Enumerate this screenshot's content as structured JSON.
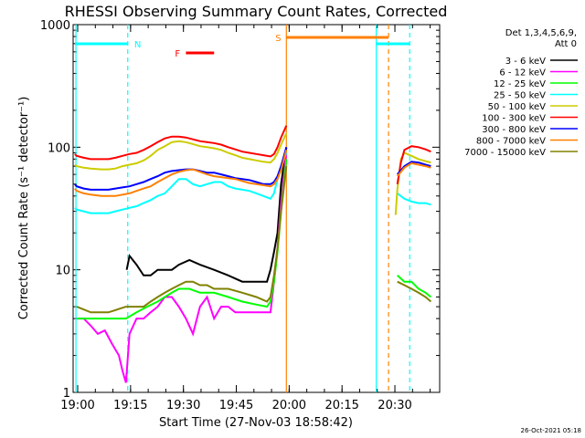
{
  "chart_data": {
    "type": "line",
    "title": "RHESSI Observing Summary Count Rates, Corrected",
    "xlabel": "Start Time (27-Nov-03 18:58:42)",
    "ylabel": "Corrected Count Rate (s⁻¹ detector⁻¹)",
    "x_unit": "minutes after 18:58:42",
    "xlim": [
      0,
      104
    ],
    "ylim": [
      1,
      1000
    ],
    "yscale": "log",
    "x_ticks": [
      {
        "t": 1.3,
        "label": "19:00"
      },
      {
        "t": 16.3,
        "label": "19:15"
      },
      {
        "t": 31.3,
        "label": "19:30"
      },
      {
        "t": 46.3,
        "label": "19:45"
      },
      {
        "t": 61.3,
        "label": "20:00"
      },
      {
        "t": 76.3,
        "label": "20:15"
      },
      {
        "t": 91.3,
        "label": "20:30"
      }
    ],
    "y_ticks": [
      {
        "v": 1,
        "label": "1"
      },
      {
        "v": 10,
        "label": "10"
      },
      {
        "v": 100,
        "label": "100"
      },
      {
        "v": 1000,
        "label": "1000"
      }
    ],
    "legend": {
      "placement": "right",
      "header": [
        "Det 1,3,4,5,6,9,",
        "Att 0"
      ],
      "entries": [
        {
          "label": "3 - 6 keV",
          "color": "#000000"
        },
        {
          "label": "6 - 12 keV",
          "color": "#ff00ff"
        },
        {
          "label": "12 - 25 keV",
          "color": "#00ff00"
        },
        {
          "label": "25 - 50 keV",
          "color": "#00ffff"
        },
        {
          "label": "50 - 100 keV",
          "color": "#cccc00"
        },
        {
          "label": "100 - 300 keV",
          "color": "#ff0000"
        },
        {
          "label": "300 - 800 keV",
          "color": "#0000ff"
        },
        {
          "label": "800 - 7000 keV",
          "color": "#ff8000"
        },
        {
          "label": "7000 - 15000 keV",
          "color": "#808000"
        }
      ]
    },
    "series": [
      {
        "color": "#000000",
        "x": [
          15.2,
          16,
          18,
          20,
          22,
          24,
          26,
          28,
          30,
          33,
          36,
          40,
          44,
          48,
          52,
          55,
          56,
          57,
          58,
          59,
          60.5,
          92,
          94,
          96,
          98,
          100,
          101.5
        ],
        "y": [
          10,
          13,
          11,
          9,
          9,
          10,
          10,
          10,
          11,
          12,
          11,
          10,
          9,
          8,
          8,
          8,
          10,
          14,
          20,
          50,
          100,
          null,
          null,
          null,
          null,
          null,
          null
        ]
      },
      {
        "color": "#ff00ff",
        "x": [
          1,
          3,
          5,
          7,
          9,
          11,
          13,
          14,
          15,
          16,
          18,
          20,
          22,
          24,
          26,
          28,
          30,
          32,
          34,
          36,
          38,
          40,
          42,
          44,
          46,
          48,
          50,
          52,
          54,
          56,
          57,
          58,
          59,
          60.5
        ],
        "y": [
          4,
          4,
          3.5,
          3,
          3.2,
          2.5,
          2,
          1.5,
          1.2,
          3,
          4,
          4,
          4.5,
          5,
          6,
          6,
          5,
          4,
          3,
          5,
          6,
          4,
          5,
          5,
          4.5,
          4.5,
          4.5,
          4.5,
          4.5,
          4.5,
          8,
          15,
          35,
          90
        ]
      },
      {
        "color": "#00ff00",
        "x": [
          1,
          5,
          10,
          15,
          18,
          21,
          24,
          26,
          28,
          30,
          33,
          36,
          40,
          44,
          48,
          52,
          55,
          56,
          57,
          58,
          59,
          60.5,
          92,
          94,
          96,
          98,
          100,
          101.5
        ],
        "y": [
          4,
          4,
          4,
          4,
          4.5,
          5,
          5.5,
          6,
          6.5,
          7,
          7,
          6.5,
          6.5,
          6,
          5.5,
          5.2,
          5,
          5.5,
          8,
          14,
          30,
          80,
          9,
          8,
          8,
          7,
          6.5,
          6
        ]
      },
      {
        "color": "#00ffff",
        "x": [
          0.5,
          1,
          3,
          5,
          8,
          10,
          12,
          14,
          16,
          18,
          20,
          22,
          24,
          26,
          28,
          30,
          32,
          34,
          36,
          38,
          40,
          42,
          44,
          46,
          48,
          50,
          52,
          54,
          56,
          57,
          58,
          59,
          60.5,
          92,
          94,
          96,
          98,
          100,
          101.5
        ],
        "y": [
          32,
          31,
          30,
          29,
          29,
          29,
          30,
          31,
          32,
          33,
          35,
          37,
          40,
          42,
          48,
          55,
          55,
          50,
          48,
          50,
          52,
          52,
          48,
          46,
          45,
          44,
          42,
          40,
          38,
          42,
          55,
          70,
          90,
          42,
          38,
          36,
          35,
          35,
          34
        ]
      },
      {
        "color": "#cccc00",
        "x": [
          0.5,
          1,
          3,
          5,
          8,
          10,
          12,
          14,
          16,
          18,
          20,
          22,
          24,
          26,
          28,
          30,
          32,
          34,
          36,
          38,
          40,
          42,
          44,
          46,
          48,
          50,
          52,
          54,
          56,
          57,
          58,
          59,
          60.5,
          91.5,
          92,
          93,
          94,
          96,
          98,
          100,
          101.5
        ],
        "y": [
          72,
          70,
          68,
          67,
          66,
          66,
          67,
          70,
          72,
          74,
          78,
          85,
          95,
          102,
          110,
          112,
          110,
          106,
          102,
          100,
          98,
          95,
          90,
          86,
          82,
          80,
          78,
          76,
          75,
          80,
          90,
          105,
          130,
          28,
          45,
          80,
          90,
          85,
          80,
          77,
          75
        ]
      },
      {
        "color": "#ff0000",
        "x": [
          0.5,
          1,
          3,
          5,
          8,
          10,
          12,
          14,
          16,
          18,
          20,
          22,
          24,
          26,
          28,
          30,
          32,
          34,
          36,
          38,
          40,
          42,
          44,
          46,
          48,
          50,
          52,
          54,
          56,
          57,
          58,
          59,
          60.5,
          92,
          93,
          94,
          96,
          98,
          100,
          101.5
        ],
        "y": [
          88,
          85,
          82,
          80,
          80,
          80,
          82,
          85,
          88,
          90,
          95,
          102,
          110,
          118,
          122,
          122,
          120,
          116,
          112,
          110,
          108,
          105,
          100,
          96,
          92,
          90,
          88,
          86,
          84,
          88,
          100,
          120,
          150,
          50,
          75,
          95,
          102,
          100,
          96,
          92
        ]
      },
      {
        "color": "#0000ff",
        "x": [
          0.5,
          1,
          3,
          5,
          8,
          10,
          12,
          14,
          16,
          18,
          20,
          22,
          24,
          26,
          28,
          30,
          32,
          34,
          36,
          38,
          40,
          42,
          44,
          46,
          48,
          50,
          52,
          54,
          56,
          57,
          58,
          59,
          60.5,
          92,
          94,
          96,
          98,
          100,
          101.5
        ],
        "y": [
          50,
          48,
          46,
          45,
          45,
          45,
          46,
          47,
          48,
          50,
          52,
          55,
          58,
          62,
          64,
          65,
          66,
          66,
          64,
          62,
          62,
          60,
          58,
          56,
          55,
          54,
          52,
          50,
          50,
          52,
          58,
          70,
          100,
          60,
          70,
          76,
          75,
          72,
          70
        ]
      },
      {
        "color": "#ff8000",
        "x": [
          0.5,
          1,
          3,
          5,
          8,
          10,
          12,
          14,
          16,
          18,
          20,
          22,
          24,
          26,
          28,
          30,
          32,
          34,
          36,
          38,
          40,
          42,
          44,
          46,
          48,
          50,
          52,
          54,
          56,
          57,
          58,
          59,
          60.5,
          92,
          94,
          96,
          98,
          100,
          101.5
        ],
        "y": [
          46,
          44,
          42,
          41,
          40,
          40,
          40,
          41,
          42,
          44,
          46,
          48,
          52,
          56,
          60,
          63,
          65,
          66,
          63,
          60,
          58,
          57,
          56,
          55,
          53,
          51,
          50,
          49,
          48,
          50,
          55,
          65,
          95,
          58,
          68,
          74,
          72,
          70,
          68
        ]
      },
      {
        "color": "#808000",
        "x": [
          1,
          5,
          10,
          15,
          18,
          20,
          22,
          24,
          26,
          28,
          30,
          32,
          34,
          36,
          38,
          40,
          44,
          48,
          52,
          55,
          56,
          57,
          58,
          59,
          60.5,
          92,
          94,
          96,
          98,
          100,
          101.5
        ],
        "y": [
          5,
          4.5,
          4.5,
          5,
          5,
          5,
          5.5,
          6,
          6.5,
          7,
          7.5,
          8,
          8,
          7.5,
          7.5,
          7,
          7,
          6.5,
          6,
          5.5,
          6,
          9,
          15,
          30,
          70,
          8,
          7.5,
          7,
          6.5,
          6,
          5.5
        ]
      }
    ],
    "observing_flags": [
      {
        "label": "N",
        "color": "#00ffff",
        "segments": [
          [
            0.5,
            15.5
          ],
          [
            86,
            95.5
          ]
        ]
      },
      {
        "label": "F",
        "color": "#ff0000",
        "segments": [
          [
            32,
            40
          ]
        ]
      },
      {
        "label": "S",
        "color": "#ff8000",
        "segments": [
          [
            60.5,
            89.5
          ]
        ]
      }
    ],
    "vertical_markers": [
      {
        "t": 0.8,
        "color": "#00ffff",
        "style": "solid"
      },
      {
        "t": 15.5,
        "color": "#00ffff",
        "style": "dashed"
      },
      {
        "t": 60.5,
        "color": "#ff8000",
        "style": "solid"
      },
      {
        "t": 86,
        "color": "#00ffff",
        "style": "solid"
      },
      {
        "t": 89.5,
        "color": "#ff8000",
        "style": "dashed"
      },
      {
        "t": 95.5,
        "color": "#00ffff",
        "style": "dashed"
      }
    ],
    "footer": "26-Oct-2021 05:18"
  }
}
